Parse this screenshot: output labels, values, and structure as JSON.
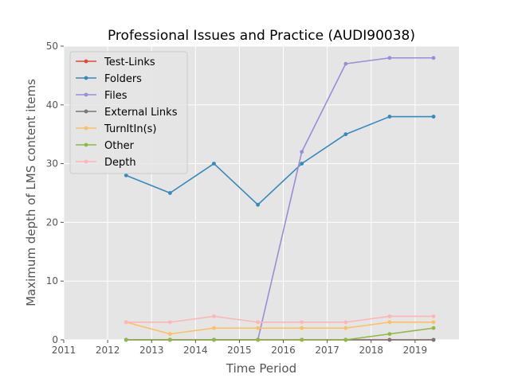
{
  "chart_data": {
    "type": "line",
    "title": "Professional Issues and Practice (AUDI90038)",
    "xlabel": "Time Period",
    "ylabel": "Maximum depth of LMS content items",
    "xlim": [
      2011,
      2020
    ],
    "ylim": [
      0,
      50
    ],
    "x_ticks": [
      2011,
      2012,
      2013,
      2014,
      2015,
      2016,
      2017,
      2018,
      2019
    ],
    "y_ticks": [
      0,
      10,
      20,
      30,
      40,
      50
    ],
    "x": [
      2012.42,
      2013.42,
      2014.42,
      2015.42,
      2016.42,
      2017.42,
      2018.42,
      2019.42
    ],
    "grid": true,
    "legend_position": "upper-left",
    "background_color": "#e5e5e5",
    "series": [
      {
        "name": "Test-Links",
        "color": "#e24a33",
        "values": [
          0,
          0,
          0,
          0,
          0,
          0,
          0,
          0
        ]
      },
      {
        "name": "Folders",
        "color": "#348abd",
        "values": [
          28,
          25,
          30,
          23,
          30,
          35,
          38,
          38
        ]
      },
      {
        "name": "Files",
        "color": "#988ed5",
        "values": [
          0,
          0,
          0,
          0,
          32,
          47,
          48,
          48
        ]
      },
      {
        "name": "External Links",
        "color": "#777777",
        "values": [
          0,
          0,
          0,
          0,
          0,
          0,
          0,
          0
        ]
      },
      {
        "name": "TurnItIn(s)",
        "color": "#fbc15e",
        "values": [
          3,
          1,
          2,
          2,
          2,
          2,
          3,
          3
        ]
      },
      {
        "name": "Other",
        "color": "#8eba42",
        "values": [
          0,
          0,
          0,
          0,
          0,
          0,
          1,
          2
        ]
      },
      {
        "name": "Depth",
        "color": "#ffb5b8",
        "values": [
          3,
          3,
          4,
          3,
          3,
          3,
          4,
          4
        ]
      }
    ]
  }
}
